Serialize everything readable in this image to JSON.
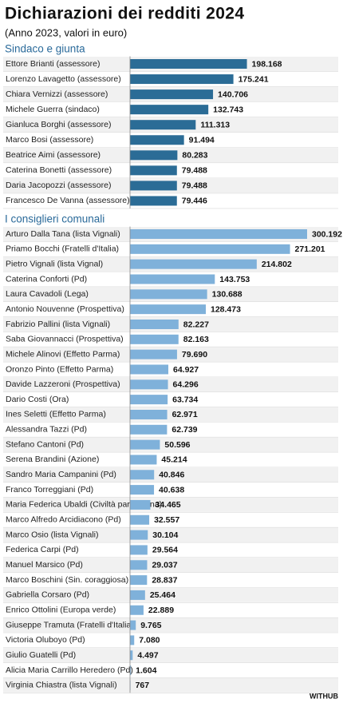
{
  "title": "Dichiarazioni dei redditi 2024",
  "subtitle": "(Anno 2023, valori in euro)",
  "credit": "WITHUB",
  "chart_data": [
    {
      "type": "bar",
      "title": "Sindaco e giunta",
      "color": "#2b6c96",
      "categories": [
        "Ettore Brianti (assessore)",
        "Lorenzo Lavagetto (assessore)",
        "Chiara Vernizzi (assessore)",
        "Michele Guerra (sindaco)",
        "Gianluca Borghi (assessore)",
        "Marco Bosi (assessore)",
        "Beatrice Aimi (assessore)",
        "Caterina Bonetti (assessore)",
        "Daria Jacopozzi (assessore)",
        "Francesco De Vanna (assessore)"
      ],
      "values": [
        198168,
        175241,
        140706,
        132743,
        111313,
        91494,
        80283,
        79488,
        79488,
        79446
      ],
      "value_labels": [
        "198.168",
        "175.241",
        "140.706",
        "132.743",
        "111.313",
        "91.494",
        "80.283",
        "79.488",
        "79.488",
        "79.446"
      ]
    },
    {
      "type": "bar",
      "title": "I consiglieri comunali",
      "color": "#7fb1da",
      "categories": [
        "Arturo Dalla Tana (lista Vignali)",
        "Priamo Bocchi (Fratelli d'Italia)",
        "Pietro Vignali (lista Vignal)",
        "Caterina Conforti (Pd)",
        "Laura Cavadoli (Lega)",
        "Antonio Nouvenne (Prospettiva)",
        "Fabrizio Pallini (lista Vignali)",
        "Saba Giovannacci (Prospettiva)",
        "Michele Alinovi (Effetto Parma)",
        "Oronzo Pinto (Effetto Parma)",
        "Davide Lazzeroni (Prospettiva)",
        "Dario Costi (Ora)",
        "Ines Seletti (Effetto Parma)",
        "Alessandra Tazzi (Pd)",
        "Stefano Cantoni (Pd)",
        "Serena Brandini (Azione)",
        "Sandro Maria Campanini (Pd)",
        "Franco Torreggiani (Pd)",
        "Maria Federica Ubaldi (Civiltà parmigiana)",
        "Marco Alfredo Arcidiacono (Pd)",
        "Marco Osio (lista Vignali)",
        "Federica Carpi (Pd)",
        "Manuel Marsico (Pd)",
        "Marco Boschini (Sin. coraggiosa)",
        "Gabriella Corsaro (Pd)",
        "Enrico Ottolini (Europa verde)",
        "Giuseppe Tramuta (Fratelli d'Italia)",
        "Victoria Oluboyo (Pd)",
        "Giulio Guatelli (Pd)",
        "Alicia Maria Carrillo Heredero (Pd)",
        "Virginia Chiastra (lista Vignali)"
      ],
      "values": [
        300192,
        271201,
        214802,
        143753,
        130688,
        128473,
        82227,
        82163,
        79690,
        64927,
        64296,
        63734,
        62971,
        62739,
        50596,
        45214,
        40846,
        40638,
        34465,
        32557,
        30104,
        29564,
        29037,
        28837,
        25464,
        22889,
        9765,
        7080,
        4497,
        1604,
        767
      ],
      "value_labels": [
        "300.192",
        "271.201",
        "214.802",
        "143.753",
        "130.688",
        "128.473",
        "82.227",
        "82.163",
        "79.690",
        "64.927",
        "64.296",
        "63.734",
        "62.971",
        "62.739",
        "50.596",
        "45.214",
        "40.846",
        "40.638",
        "34.465",
        "32.557",
        "30.104",
        "29.564",
        "29.037",
        "28.837",
        "25.464",
        "22.889",
        "9.765",
        "7.080",
        "4.497",
        "1.604",
        "767"
      ]
    }
  ]
}
